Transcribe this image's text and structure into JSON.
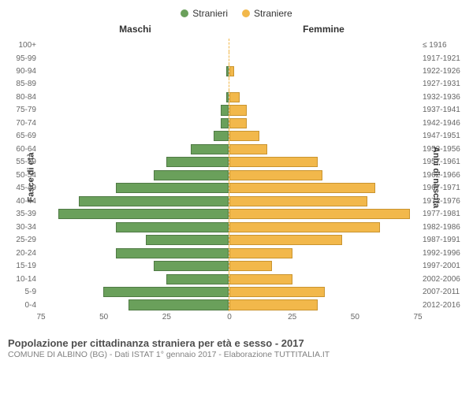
{
  "legend": {
    "male": {
      "label": "Stranieri",
      "color": "#6aa05b"
    },
    "female": {
      "label": "Straniere",
      "color": "#f2b84b"
    }
  },
  "headers": {
    "male": "Maschi",
    "female": "Femmine"
  },
  "axis_labels": {
    "left": "Fasce di età",
    "right": "Anni di nascita"
  },
  "axis": {
    "max": 75,
    "ticks": [
      75,
      50,
      25,
      0,
      25,
      50,
      75
    ]
  },
  "title": "Popolazione per cittadinanza straniera per età e sesso - 2017",
  "source": "COMUNE DI ALBINO (BG) - Dati ISTAT 1° gennaio 2017 - Elaborazione TUTTITALIA.IT",
  "bar_style": {
    "male_fill": "#6aa05b",
    "male_stroke": "#4f7a44",
    "female_fill": "#f2b84b",
    "female_stroke": "#c9942f"
  },
  "rows": [
    {
      "age": "100+",
      "year": "≤ 1916",
      "m": 0,
      "f": 0
    },
    {
      "age": "95-99",
      "year": "1917-1921",
      "m": 0,
      "f": 0
    },
    {
      "age": "90-94",
      "year": "1922-1926",
      "m": 1,
      "f": 2
    },
    {
      "age": "85-89",
      "year": "1927-1931",
      "m": 0,
      "f": 0
    },
    {
      "age": "80-84",
      "year": "1932-1936",
      "m": 1,
      "f": 4
    },
    {
      "age": "75-79",
      "year": "1937-1941",
      "m": 3,
      "f": 7
    },
    {
      "age": "70-74",
      "year": "1942-1946",
      "m": 3,
      "f": 7
    },
    {
      "age": "65-69",
      "year": "1947-1951",
      "m": 6,
      "f": 12
    },
    {
      "age": "60-64",
      "year": "1952-1956",
      "m": 15,
      "f": 15
    },
    {
      "age": "55-59",
      "year": "1957-1961",
      "m": 25,
      "f": 35
    },
    {
      "age": "50-54",
      "year": "1962-1966",
      "m": 30,
      "f": 37
    },
    {
      "age": "45-49",
      "year": "1967-1971",
      "m": 45,
      "f": 58
    },
    {
      "age": "40-44",
      "year": "1972-1976",
      "m": 60,
      "f": 55
    },
    {
      "age": "35-39",
      "year": "1977-1981",
      "m": 68,
      "f": 72
    },
    {
      "age": "30-34",
      "year": "1982-1986",
      "m": 45,
      "f": 60
    },
    {
      "age": "25-29",
      "year": "1987-1991",
      "m": 33,
      "f": 45
    },
    {
      "age": "20-24",
      "year": "1992-1996",
      "m": 45,
      "f": 25
    },
    {
      "age": "15-19",
      "year": "1997-2001",
      "m": 30,
      "f": 17
    },
    {
      "age": "10-14",
      "year": "2002-2006",
      "m": 25,
      "f": 25
    },
    {
      "age": "5-9",
      "year": "2007-2011",
      "m": 50,
      "f": 38
    },
    {
      "age": "0-4",
      "year": "2012-2016",
      "m": 40,
      "f": 35
    }
  ]
}
